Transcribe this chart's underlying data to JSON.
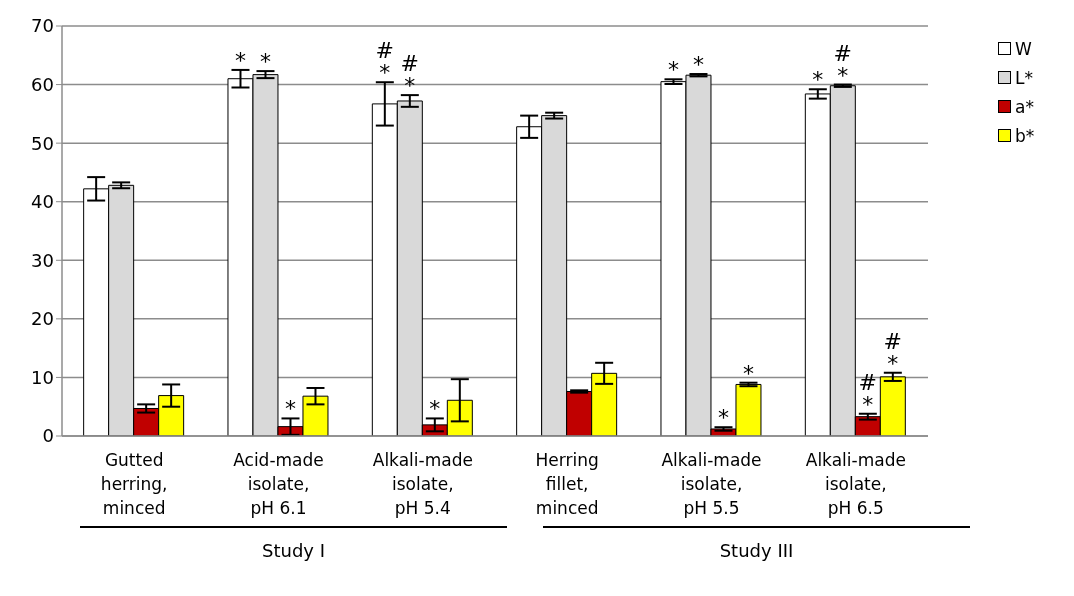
{
  "chart_data": {
    "type": "bar",
    "categories": [
      "Gutted herring, minced",
      "Acid-made isolate, pH 6.1",
      "Alkali-made isolate, pH 5.4",
      "Herring fillet, minced",
      "Alkali-made isolate, pH 5.5",
      "Alkali-made isolate, pH 6.5"
    ],
    "series": [
      {
        "name": "W",
        "color": "#ffffff",
        "values": [
          42.2,
          61.0,
          56.7,
          52.8,
          60.5,
          58.4
        ],
        "errors": [
          2.0,
          1.5,
          3.7,
          1.9,
          0.4,
          0.8
        ],
        "value_labels": [
          null,
          "*",
          "#\n*",
          null,
          "*",
          "*"
        ]
      },
      {
        "name": "L*",
        "color": "#d9d9d9",
        "values": [
          42.8,
          61.7,
          57.2,
          54.7,
          61.6,
          59.8
        ],
        "errors": [
          0.5,
          0.6,
          1.0,
          0.5,
          0.2,
          0.2
        ],
        "value_labels": [
          null,
          "*",
          "#\n*",
          null,
          "*",
          "#\n*"
        ]
      },
      {
        "name": "a*",
        "color": "#c00000",
        "values": [
          4.7,
          1.6,
          1.9,
          7.6,
          1.2,
          3.3
        ],
        "errors": [
          0.7,
          1.4,
          1.1,
          0.2,
          0.3,
          0.5
        ],
        "value_labels": [
          null,
          "*",
          "*",
          null,
          "*",
          "#\n*"
        ]
      },
      {
        "name": "b*",
        "color": "#ffff00",
        "values": [
          6.9,
          6.8,
          6.1,
          10.7,
          8.8,
          10.1
        ],
        "errors": [
          1.9,
          1.4,
          3.6,
          1.8,
          0.3,
          0.7
        ],
        "value_labels": [
          null,
          null,
          null,
          null,
          "*",
          "#\n*"
        ]
      }
    ],
    "ylim": [
      0,
      70
    ],
    "yticks": [
      0,
      10,
      20,
      30,
      40,
      50,
      60,
      70
    ],
    "grid": "y",
    "legend": "right",
    "annotations": [
      "Study I",
      "Study III"
    ]
  }
}
